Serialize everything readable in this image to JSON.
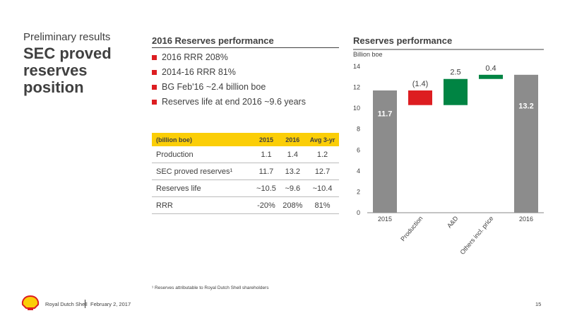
{
  "header": {
    "kicker": "Preliminary results",
    "title": "SEC proved reserves position"
  },
  "highlights": {
    "title": "2016 Reserves performance",
    "bullets": [
      "2016 RRR 208%",
      "2014-16 RRR 81%",
      "BG Feb'16 ~2.4 billion boe",
      "Reserves life at end 2016 ~9.6 years"
    ]
  },
  "table": {
    "header": [
      "(billion boe)",
      "2015",
      "2016",
      "Avg 3-yr"
    ],
    "rows": [
      [
        "Production",
        "1.1",
        "1.4",
        "1.2"
      ],
      [
        "SEC proved reserves¹",
        "11.7",
        "13.2",
        "12.7"
      ],
      [
        "Reserves life",
        "~10.5",
        "~9.6",
        "~10.4"
      ],
      [
        "RRR",
        "-20%",
        "208%",
        "81%"
      ]
    ]
  },
  "chart_data": {
    "type": "waterfall",
    "title": "Reserves performance",
    "y_label": "Billion boe",
    "categories": [
      "2015",
      "Production",
      "A&D",
      "Others incl. price",
      "2016"
    ],
    "values": [
      11.7,
      -1.4,
      2.5,
      0.4,
      13.2
    ],
    "value_labels": [
      "11.7",
      "(1.4)",
      "2.5",
      "0.4",
      "13.2"
    ],
    "measure": [
      "absolute",
      "relative",
      "relative",
      "relative",
      "absolute"
    ],
    "colors": [
      "#8c8c8c",
      "#dd1d21",
      "#008443",
      "#008443",
      "#8c8c8c"
    ],
    "ylim": [
      0,
      14
    ],
    "yticks": [
      0,
      2,
      4,
      6,
      8,
      10,
      12,
      14
    ]
  },
  "footnote": "¹ Reserves attributable to Royal Dutch Shell shareholders",
  "footer": {
    "company": "Royal Dutch Shell",
    "date": "February 2, 2017",
    "page": "15"
  }
}
